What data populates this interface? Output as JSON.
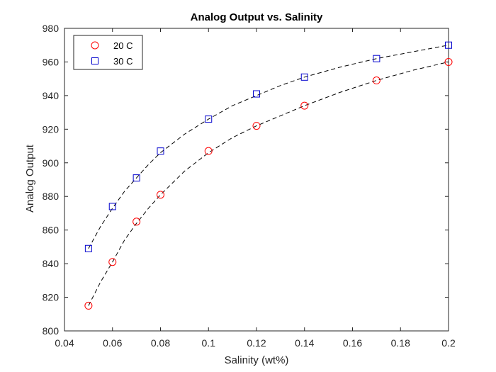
{
  "chart_data": {
    "type": "scatter",
    "title": "Analog Output vs. Salinity",
    "xlabel": "Salinity (wt%)",
    "ylabel": "Analog Output",
    "xlim": [
      0.04,
      0.2
    ],
    "ylim": [
      800,
      980
    ],
    "xticks": [
      0.04,
      0.06,
      0.08,
      0.1,
      0.12,
      0.14,
      0.16,
      0.18,
      0.2
    ],
    "xtick_labels": [
      "0.04",
      "0.06",
      "0.08",
      "0.1",
      "0.12",
      "0.14",
      "0.16",
      "0.18",
      "0.2"
    ],
    "yticks": [
      800,
      820,
      840,
      860,
      880,
      900,
      920,
      940,
      960,
      980
    ],
    "ytick_labels": [
      "800",
      "820",
      "840",
      "860",
      "880",
      "900",
      "920",
      "940",
      "960",
      "980"
    ],
    "grid": false,
    "legend_position": "top-left",
    "series": [
      {
        "name": "20 C",
        "marker": "circle",
        "color": "#ff0000",
        "x": [
          0.05,
          0.06,
          0.07,
          0.08,
          0.1,
          0.12,
          0.14,
          0.17,
          0.2
        ],
        "y": [
          815,
          841,
          865,
          881,
          907,
          922,
          934,
          949,
          960
        ]
      },
      {
        "name": "30 C",
        "marker": "square",
        "color": "#0000cd",
        "x": [
          0.05,
          0.06,
          0.07,
          0.08,
          0.1,
          0.12,
          0.14,
          0.17,
          0.2
        ],
        "y": [
          849,
          874,
          891,
          907,
          926,
          941,
          951,
          962,
          970
        ]
      }
    ],
    "fit_lines": [
      {
        "style": "dashed",
        "color": "#000000",
        "x": [
          0.05,
          0.055,
          0.06,
          0.065,
          0.07,
          0.075,
          0.08,
          0.09,
          0.1,
          0.11,
          0.12,
          0.13,
          0.14,
          0.155,
          0.17,
          0.185,
          0.2
        ],
        "y": [
          815,
          829,
          841,
          854,
          864,
          873,
          881,
          895,
          906,
          915,
          922,
          928,
          934,
          942,
          949,
          955,
          960
        ]
      },
      {
        "style": "dashed",
        "color": "#000000",
        "x": [
          0.05,
          0.055,
          0.06,
          0.065,
          0.07,
          0.075,
          0.08,
          0.09,
          0.1,
          0.11,
          0.12,
          0.13,
          0.14,
          0.155,
          0.17,
          0.185,
          0.2
        ],
        "y": [
          849,
          862,
          873,
          883,
          891,
          899,
          906,
          917,
          926,
          934,
          940,
          946,
          951,
          957,
          962,
          966,
          970
        ]
      }
    ]
  }
}
